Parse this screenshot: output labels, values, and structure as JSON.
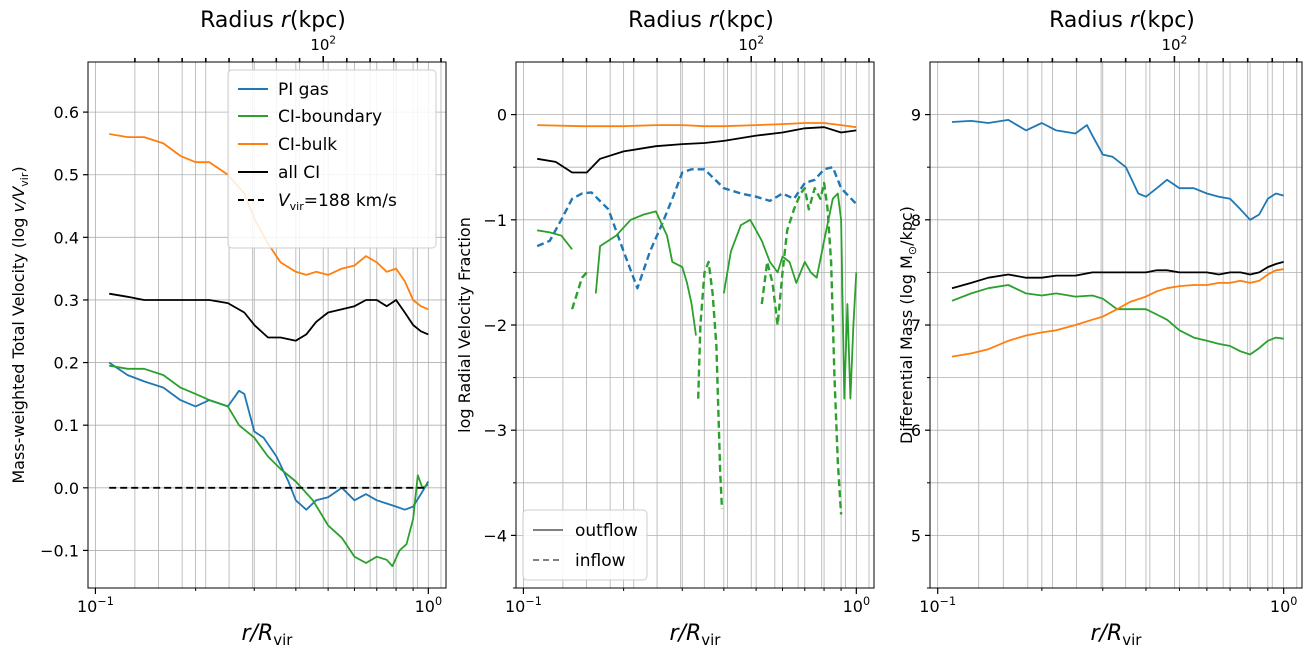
{
  "chart_data": [
    {
      "type": "line",
      "title": "Radius r(kpc)",
      "top_axis_tick_label": "10^2",
      "xlabel": "r/R_vir",
      "ylabel": "Mass-weighted Total Velocity (log v/V_vir)",
      "xscale": "log",
      "xlim": [
        0.1,
        1.0
      ],
      "ylim": [
        -0.16,
        0.68
      ],
      "yticks": [
        -0.1,
        0.0,
        0.1,
        0.2,
        0.3,
        0.4,
        0.5,
        0.6
      ],
      "ytick_labels": [
        "−0.1",
        "0.0",
        "0.1",
        "0.2",
        "0.3",
        "0.4",
        "0.5",
        "0.6"
      ],
      "xtick_labels": [
        "10^-1",
        "10^0"
      ],
      "grid": true,
      "legend_position": "top-right",
      "legend": [
        "PI gas",
        "CI-boundary",
        "CI-bulk",
        "all CI",
        "V_vir=188 km/s"
      ],
      "series": [
        {
          "name": "PI gas",
          "color": "#1f77b4",
          "style": "solid",
          "x": [
            0.11,
            0.125,
            0.14,
            0.16,
            0.18,
            0.2,
            0.22,
            0.25,
            0.27,
            0.28,
            0.3,
            0.32,
            0.35,
            0.38,
            0.4,
            0.43,
            0.46,
            0.5,
            0.55,
            0.6,
            0.65,
            0.7,
            0.75,
            0.8,
            0.85,
            0.9,
            0.95,
            1.0
          ],
          "y": [
            0.2,
            0.18,
            0.17,
            0.16,
            0.14,
            0.13,
            0.14,
            0.13,
            0.155,
            0.15,
            0.09,
            0.08,
            0.05,
            0.01,
            -0.02,
            -0.035,
            -0.02,
            -0.015,
            0.0,
            -0.02,
            -0.01,
            -0.02,
            -0.025,
            -0.03,
            -0.035,
            -0.03,
            -0.01,
            0.01
          ]
        },
        {
          "name": "CI-boundary",
          "color": "#2ca02c",
          "style": "solid",
          "x": [
            0.11,
            0.125,
            0.14,
            0.16,
            0.18,
            0.2,
            0.22,
            0.25,
            0.27,
            0.3,
            0.33,
            0.36,
            0.4,
            0.45,
            0.5,
            0.55,
            0.6,
            0.65,
            0.7,
            0.75,
            0.78,
            0.82,
            0.86,
            0.9,
            0.93,
            0.96,
            1.0
          ],
          "y": [
            0.195,
            0.19,
            0.19,
            0.18,
            0.16,
            0.15,
            0.14,
            0.13,
            0.1,
            0.08,
            0.05,
            0.03,
            0.01,
            -0.02,
            -0.06,
            -0.08,
            -0.11,
            -0.12,
            -0.11,
            -0.115,
            -0.125,
            -0.1,
            -0.09,
            -0.05,
            0.02,
            0.0,
            0.005
          ]
        },
        {
          "name": "CI-bulk",
          "color": "#ff7f0e",
          "style": "solid",
          "x": [
            0.11,
            0.125,
            0.14,
            0.16,
            0.18,
            0.2,
            0.22,
            0.25,
            0.28,
            0.3,
            0.33,
            0.36,
            0.4,
            0.43,
            0.46,
            0.5,
            0.55,
            0.6,
            0.65,
            0.7,
            0.75,
            0.8,
            0.85,
            0.9,
            0.95,
            1.0
          ],
          "y": [
            0.565,
            0.56,
            0.56,
            0.55,
            0.53,
            0.52,
            0.52,
            0.5,
            0.47,
            0.43,
            0.39,
            0.36,
            0.345,
            0.34,
            0.345,
            0.34,
            0.35,
            0.355,
            0.37,
            0.36,
            0.345,
            0.35,
            0.33,
            0.3,
            0.29,
            0.285
          ]
        },
        {
          "name": "all CI",
          "color": "#000000",
          "style": "solid",
          "x": [
            0.11,
            0.125,
            0.14,
            0.16,
            0.18,
            0.2,
            0.22,
            0.25,
            0.28,
            0.3,
            0.33,
            0.36,
            0.4,
            0.43,
            0.46,
            0.5,
            0.55,
            0.6,
            0.65,
            0.7,
            0.75,
            0.8,
            0.85,
            0.9,
            0.95,
            1.0
          ],
          "y": [
            0.31,
            0.305,
            0.3,
            0.3,
            0.3,
            0.3,
            0.3,
            0.295,
            0.28,
            0.26,
            0.24,
            0.24,
            0.235,
            0.245,
            0.265,
            0.28,
            0.285,
            0.29,
            0.3,
            0.3,
            0.29,
            0.3,
            0.28,
            0.26,
            0.25,
            0.245
          ]
        },
        {
          "name": "V_vir=188 km/s",
          "color": "#000000",
          "style": "dashed",
          "x": [
            0.11,
            1.0
          ],
          "y": [
            0.0,
            0.0
          ]
        }
      ]
    },
    {
      "type": "line",
      "title": "Radius r(kpc)",
      "top_axis_tick_label": "10^2",
      "xlabel": "r/R_vir",
      "ylabel": "log Radial Velocity Fraction",
      "xscale": "log",
      "xlim": [
        0.1,
        1.0
      ],
      "ylim": [
        -4.5,
        0.5
      ],
      "yticks": [
        -4,
        -3,
        -2,
        -1,
        0
      ],
      "ytick_labels": [
        "−4",
        "−3",
        "−2",
        "−1",
        "0"
      ],
      "xtick_labels": [
        "10^-1",
        "10^0"
      ],
      "grid": true,
      "legend_position": "bottom-left",
      "legend": [
        "outflow",
        "inflow"
      ],
      "series": [
        {
          "color": "#ff7f0e",
          "style": "solid",
          "x": [
            0.11,
            0.15,
            0.2,
            0.25,
            0.3,
            0.35,
            0.4,
            0.5,
            0.6,
            0.7,
            0.8,
            0.9,
            1.0
          ],
          "y": [
            -0.1,
            -0.11,
            -0.11,
            -0.1,
            -0.1,
            -0.11,
            -0.11,
            -0.1,
            -0.09,
            -0.08,
            -0.08,
            -0.1,
            -0.12
          ]
        },
        {
          "color": "#000000",
          "style": "solid",
          "x": [
            0.11,
            0.125,
            0.14,
            0.155,
            0.17,
            0.2,
            0.25,
            0.3,
            0.35,
            0.4,
            0.5,
            0.6,
            0.7,
            0.8,
            0.9,
            1.0
          ],
          "y": [
            -0.42,
            -0.45,
            -0.55,
            -0.55,
            -0.42,
            -0.35,
            -0.3,
            -0.28,
            -0.27,
            -0.25,
            -0.2,
            -0.17,
            -0.13,
            -0.12,
            -0.17,
            -0.15
          ]
        },
        {
          "color": "#1f77b4",
          "style": "dashed",
          "x": [
            0.11,
            0.12,
            0.13,
            0.14,
            0.15,
            0.16,
            0.18,
            0.2,
            0.22,
            0.24,
            0.26,
            0.28,
            0.3,
            0.32,
            0.35,
            0.4,
            0.45,
            0.5,
            0.55,
            0.6,
            0.65,
            0.7,
            0.75,
            0.8,
            0.85,
            0.9,
            1.0
          ],
          "y": [
            -1.25,
            -1.2,
            -1.0,
            -0.8,
            -0.75,
            -0.74,
            -0.9,
            -1.3,
            -1.65,
            -1.3,
            -1.05,
            -0.8,
            -0.55,
            -0.52,
            -0.52,
            -0.7,
            -0.75,
            -0.78,
            -0.82,
            -0.75,
            -0.8,
            -0.65,
            -0.62,
            -0.52,
            -0.5,
            -0.7,
            -0.85
          ]
        },
        {
          "color": "#2ca02c",
          "style": "solid",
          "x": [
            0.11,
            0.12,
            0.13,
            0.14
          ],
          "y": [
            -1.1,
            -1.12,
            -1.15,
            -1.28
          ]
        },
        {
          "color": "#2ca02c",
          "style": "solid",
          "x": [
            0.165,
            0.17,
            0.19,
            0.21,
            0.23,
            0.25,
            0.27,
            0.28,
            0.3,
            0.31,
            0.32,
            0.33
          ],
          "y": [
            -1.7,
            -1.25,
            -1.15,
            -1.0,
            -0.95,
            -0.92,
            -1.15,
            -1.4,
            -1.45,
            -1.6,
            -1.8,
            -2.1
          ]
        },
        {
          "color": "#2ca02c",
          "style": "solid",
          "x": [
            0.4,
            0.42,
            0.45,
            0.48,
            0.5,
            0.52,
            0.55,
            0.58,
            0.6,
            0.63,
            0.66,
            0.7,
            0.73,
            0.76,
            0.8,
            0.85,
            0.88,
            0.9,
            0.92,
            0.94,
            0.96,
            0.98,
            1.0
          ],
          "y": [
            -1.7,
            -1.3,
            -1.05,
            -1.0,
            -1.1,
            -1.2,
            -1.4,
            -1.5,
            -1.35,
            -1.4,
            -1.6,
            -1.4,
            -1.5,
            -1.55,
            -1.2,
            -0.8,
            -0.75,
            -1.0,
            -2.7,
            -1.8,
            -2.7,
            -2.0,
            -1.5
          ]
        },
        {
          "color": "#2ca02c",
          "style": "dashed",
          "x": [
            0.14,
            0.145,
            0.15,
            0.155
          ],
          "y": [
            -1.85,
            -1.7,
            -1.55,
            -1.5
          ]
        },
        {
          "color": "#2ca02c",
          "style": "dashed",
          "x": [
            0.335,
            0.34,
            0.35,
            0.36,
            0.37,
            0.38,
            0.385,
            0.39,
            0.395
          ],
          "y": [
            -2.7,
            -2.0,
            -1.5,
            -1.4,
            -1.7,
            -2.2,
            -2.8,
            -3.4,
            -3.75
          ]
        },
        {
          "color": "#2ca02c",
          "style": "dashed",
          "x": [
            0.52,
            0.54,
            0.56,
            0.58,
            0.6,
            0.62,
            0.65,
            0.68,
            0.7,
            0.72,
            0.75,
            0.78,
            0.8,
            0.82,
            0.84,
            0.86,
            0.88,
            0.9
          ],
          "y": [
            -1.8,
            -1.4,
            -1.6,
            -2.0,
            -1.5,
            -1.1,
            -0.9,
            -0.75,
            -0.7,
            -0.9,
            -0.7,
            -0.8,
            -0.65,
            -0.9,
            -1.4,
            -2.5,
            -3.3,
            -3.8
          ]
        }
      ]
    },
    {
      "type": "line",
      "title": "Radius r(kpc)",
      "top_axis_tick_label": "10^2",
      "xlabel": "r/R_vir",
      "ylabel": "Differential Mass (log M⊙/kpc)",
      "xscale": "log",
      "xlim": [
        0.1,
        1.0
      ],
      "ylim": [
        4.5,
        9.5
      ],
      "yticks": [
        5,
        6,
        7,
        8,
        9
      ],
      "ytick_labels": [
        "5",
        "6",
        "7",
        "8",
        "9"
      ],
      "xtick_labels": [
        "10^-1",
        "10^0"
      ],
      "grid": true,
      "series": [
        {
          "color": "#1f77b4",
          "style": "solid",
          "x": [
            0.11,
            0.125,
            0.14,
            0.16,
            0.18,
            0.2,
            0.22,
            0.25,
            0.27,
            0.28,
            0.3,
            0.32,
            0.35,
            0.38,
            0.4,
            0.43,
            0.46,
            0.5,
            0.55,
            0.6,
            0.65,
            0.7,
            0.75,
            0.8,
            0.85,
            0.9,
            0.95,
            1.0
          ],
          "y": [
            8.93,
            8.94,
            8.92,
            8.95,
            8.85,
            8.92,
            8.85,
            8.82,
            8.9,
            8.8,
            8.62,
            8.6,
            8.5,
            8.25,
            8.22,
            8.3,
            8.38,
            8.3,
            8.3,
            8.25,
            8.22,
            8.2,
            8.1,
            8.0,
            8.05,
            8.2,
            8.25,
            8.23
          ]
        },
        {
          "color": "#2ca02c",
          "style": "solid",
          "x": [
            0.11,
            0.125,
            0.14,
            0.16,
            0.18,
            0.2,
            0.22,
            0.25,
            0.28,
            0.3,
            0.33,
            0.36,
            0.4,
            0.43,
            0.46,
            0.5,
            0.55,
            0.6,
            0.65,
            0.7,
            0.75,
            0.8,
            0.85,
            0.9,
            0.95,
            1.0
          ],
          "y": [
            7.23,
            7.3,
            7.35,
            7.38,
            7.3,
            7.28,
            7.3,
            7.27,
            7.28,
            7.25,
            7.15,
            7.15,
            7.15,
            7.1,
            7.05,
            6.95,
            6.88,
            6.85,
            6.82,
            6.8,
            6.75,
            6.72,
            6.78,
            6.85,
            6.88,
            6.87
          ]
        },
        {
          "color": "#ff7f0e",
          "style": "solid",
          "x": [
            0.11,
            0.125,
            0.14,
            0.16,
            0.18,
            0.2,
            0.22,
            0.25,
            0.28,
            0.3,
            0.33,
            0.36,
            0.4,
            0.43,
            0.46,
            0.5,
            0.55,
            0.6,
            0.65,
            0.7,
            0.75,
            0.8,
            0.85,
            0.9,
            0.95,
            1.0
          ],
          "y": [
            6.7,
            6.73,
            6.77,
            6.85,
            6.9,
            6.93,
            6.95,
            7.0,
            7.05,
            7.08,
            7.15,
            7.22,
            7.27,
            7.32,
            7.35,
            7.37,
            7.38,
            7.38,
            7.4,
            7.4,
            7.42,
            7.4,
            7.42,
            7.48,
            7.52,
            7.53
          ]
        },
        {
          "color": "#000000",
          "style": "solid",
          "x": [
            0.11,
            0.125,
            0.14,
            0.16,
            0.18,
            0.2,
            0.22,
            0.25,
            0.28,
            0.3,
            0.33,
            0.36,
            0.4,
            0.43,
            0.46,
            0.5,
            0.55,
            0.6,
            0.65,
            0.7,
            0.75,
            0.8,
            0.85,
            0.9,
            0.95,
            1.0
          ],
          "y": [
            7.35,
            7.4,
            7.45,
            7.48,
            7.45,
            7.45,
            7.47,
            7.47,
            7.5,
            7.5,
            7.5,
            7.5,
            7.5,
            7.52,
            7.52,
            7.5,
            7.5,
            7.5,
            7.48,
            7.5,
            7.5,
            7.48,
            7.5,
            7.55,
            7.58,
            7.6
          ]
        }
      ]
    }
  ],
  "legend_labels": {
    "pi_gas": "PI gas",
    "ci_boundary": "CI-boundary",
    "ci_bulk": "CI-bulk",
    "all_ci": "all CI",
    "vvir": "=188 km/s",
    "outflow": "outflow",
    "inflow": "inflow"
  }
}
